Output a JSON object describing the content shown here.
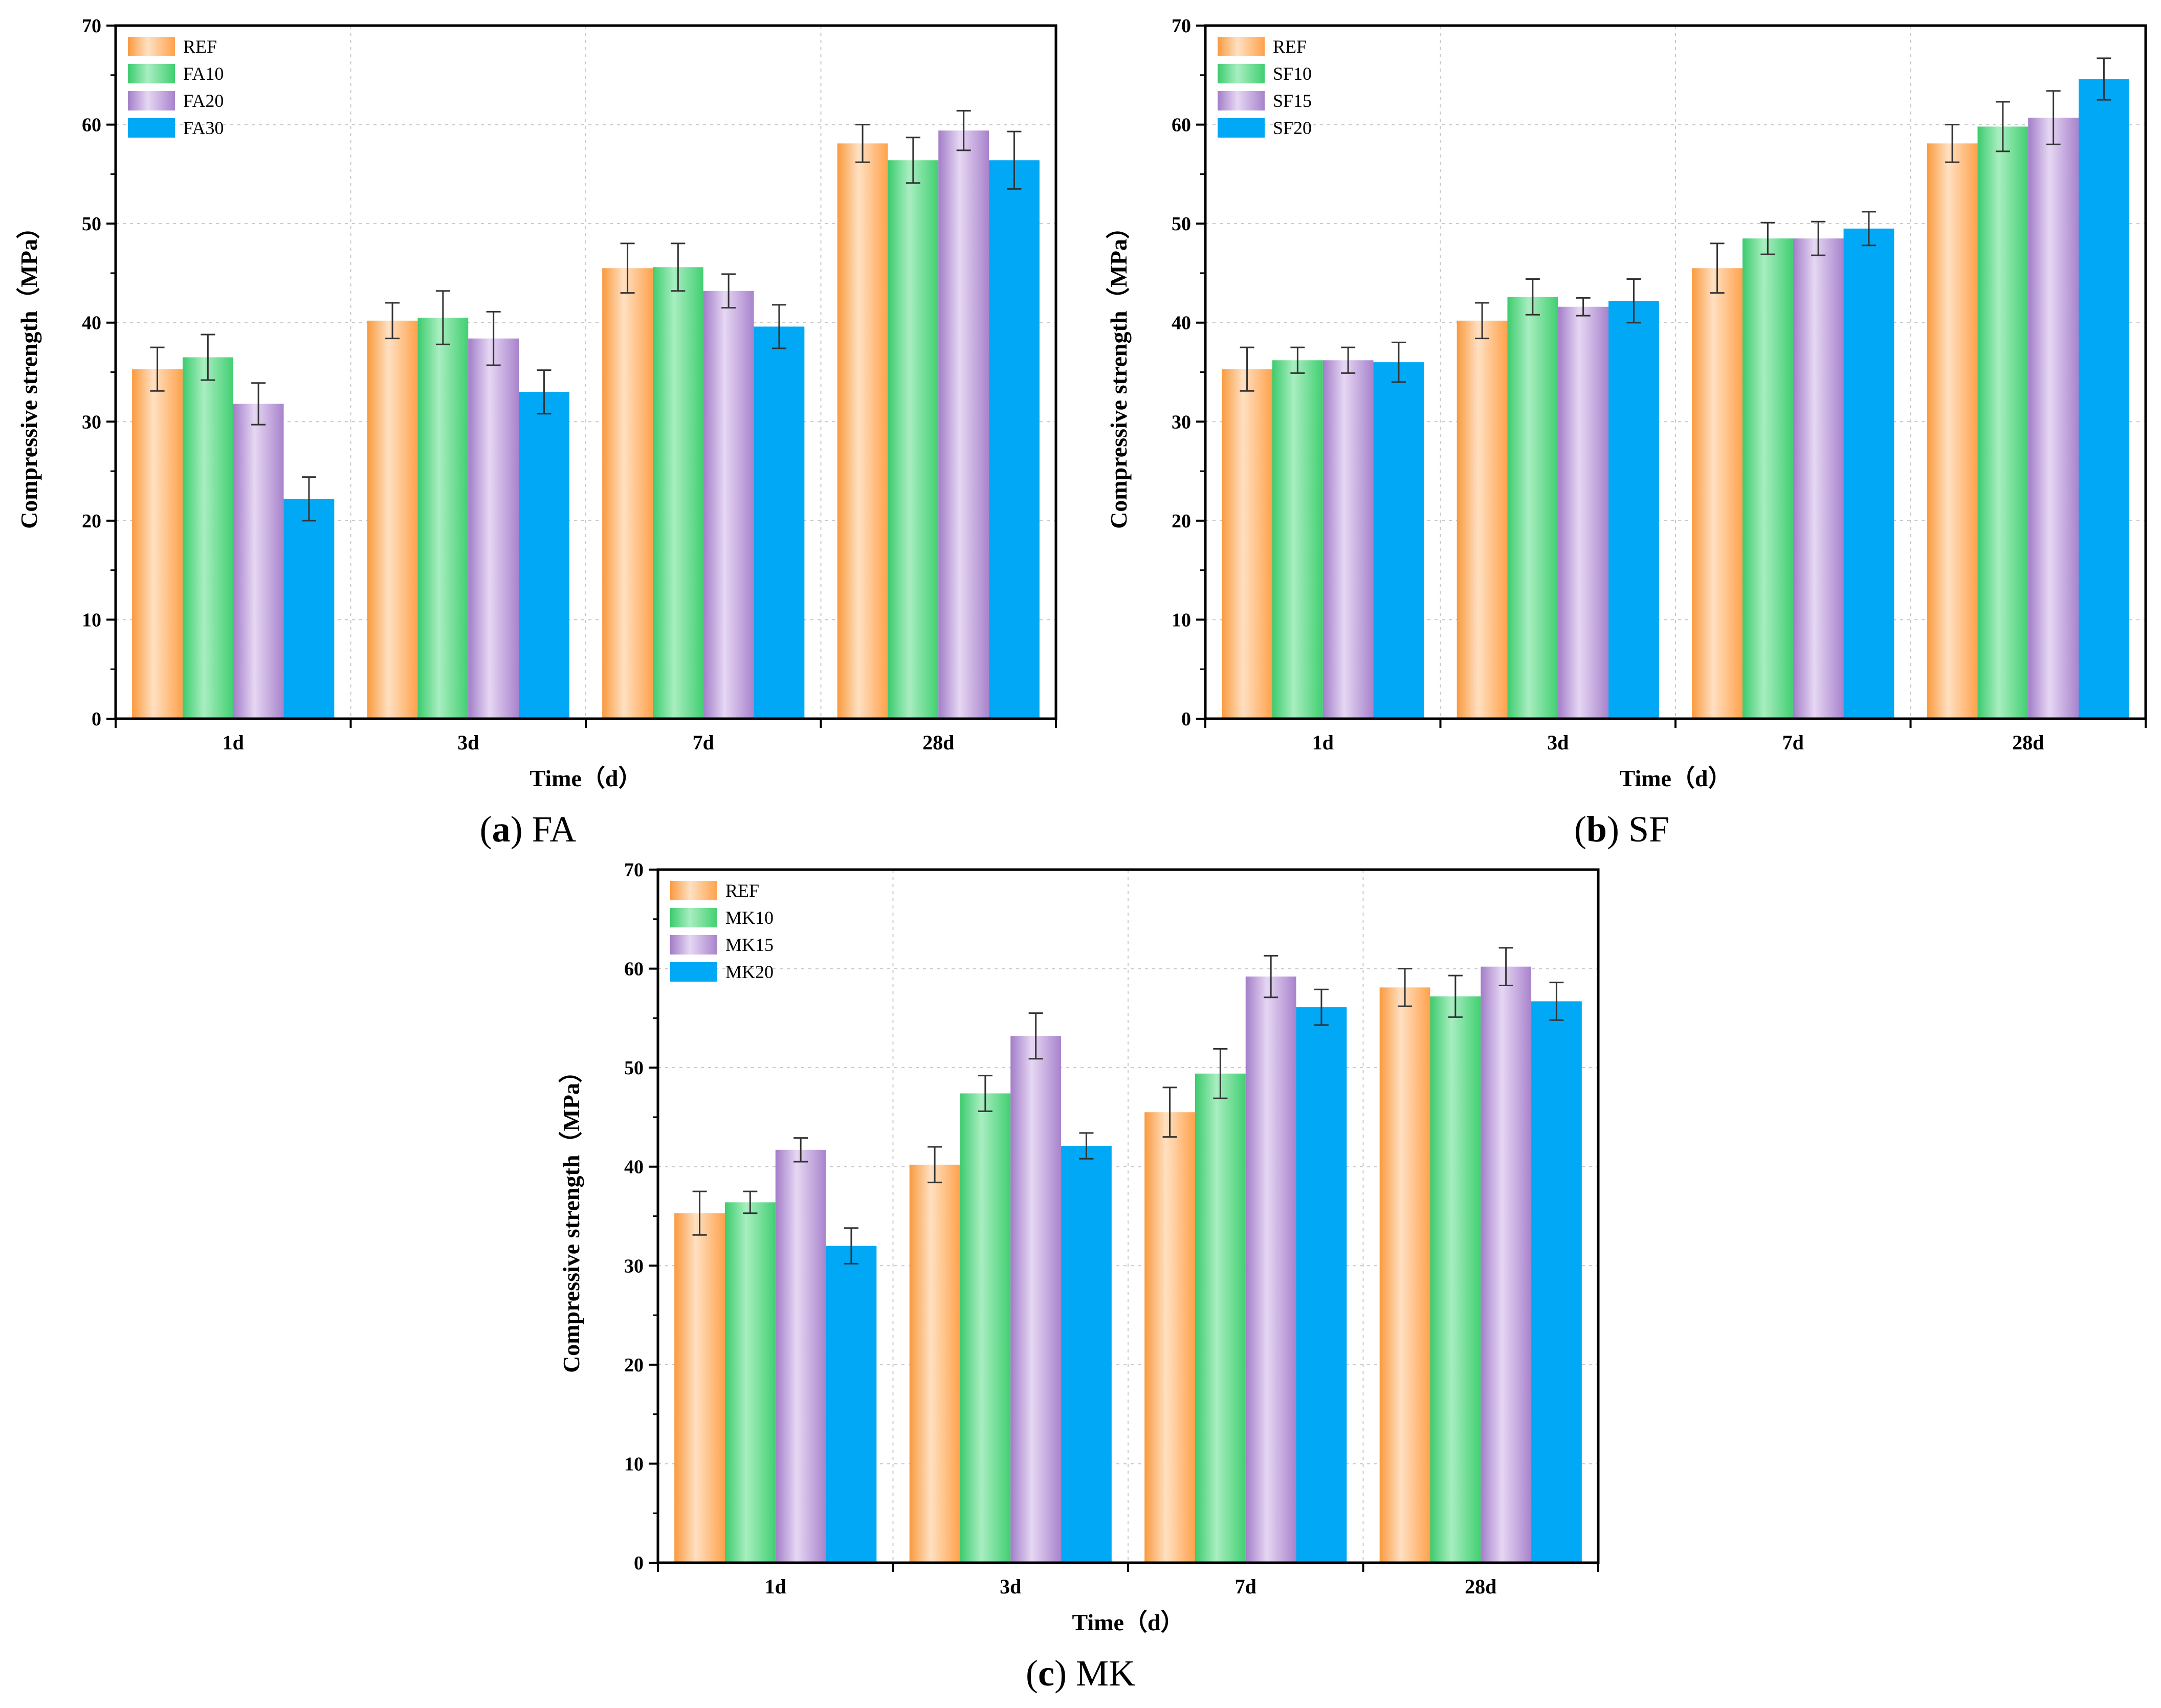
{
  "figure": {
    "captions": [
      {
        "letter": "a",
        "text": "FA"
      },
      {
        "letter": "b",
        "text": "SF"
      },
      {
        "letter": "c",
        "text": "MK"
      }
    ]
  },
  "colors": {
    "REF": "#FFB56B",
    "G1": "#5FD88A",
    "G2": "#C5A6E0",
    "G3": "#00A8F5",
    "errorbar": "#333333",
    "grid": "#C8C8C8"
  },
  "chart_data": [
    {
      "type": "bar",
      "panel": "a",
      "xlabel": "Time（d）",
      "ylabel": "Compressive strength（MPa）",
      "ylim": [
        0,
        70
      ],
      "yticks": [
        0,
        10,
        20,
        30,
        40,
        50,
        60,
        70
      ],
      "grid": true,
      "legend_position": "top-left",
      "categories": [
        "1d",
        "3d",
        "7d",
        "28d"
      ],
      "series": [
        {
          "name": "REF",
          "values": [
            35.3,
            40.2,
            45.5,
            58.1
          ],
          "errors": [
            2.2,
            1.8,
            2.5,
            1.9
          ]
        },
        {
          "name": "FA10",
          "values": [
            36.5,
            40.5,
            45.6,
            56.4
          ],
          "errors": [
            2.3,
            2.7,
            2.4,
            2.3
          ]
        },
        {
          "name": "FA20",
          "values": [
            31.8,
            38.4,
            43.2,
            59.4
          ],
          "errors": [
            2.1,
            2.7,
            1.7,
            2.0
          ]
        },
        {
          "name": "FA30",
          "values": [
            22.2,
            33.0,
            39.6,
            56.4
          ],
          "errors": [
            2.2,
            2.2,
            2.2,
            2.9
          ]
        }
      ]
    },
    {
      "type": "bar",
      "panel": "b",
      "xlabel": "Time（d）",
      "ylabel": "Compressive strength（MPa）",
      "ylim": [
        0,
        70
      ],
      "yticks": [
        0,
        10,
        20,
        30,
        40,
        50,
        60,
        70
      ],
      "grid": true,
      "legend_position": "top-left",
      "categories": [
        "1d",
        "3d",
        "7d",
        "28d"
      ],
      "series": [
        {
          "name": "REF",
          "values": [
            35.3,
            40.2,
            45.5,
            58.1
          ],
          "errors": [
            2.2,
            1.8,
            2.5,
            1.9
          ]
        },
        {
          "name": "SF10",
          "values": [
            36.2,
            42.6,
            48.5,
            59.8
          ],
          "errors": [
            1.3,
            1.8,
            1.6,
            2.5
          ]
        },
        {
          "name": "SF15",
          "values": [
            36.2,
            41.6,
            48.5,
            60.7
          ],
          "errors": [
            1.3,
            0.9,
            1.7,
            2.7
          ]
        },
        {
          "name": "SF20",
          "values": [
            36.0,
            42.2,
            49.5,
            64.6
          ],
          "errors": [
            2.0,
            2.2,
            1.7,
            2.1
          ]
        }
      ]
    },
    {
      "type": "bar",
      "panel": "c",
      "xlabel": "Time（d）",
      "ylabel": "Compressive strength（MPa）",
      "ylim": [
        0,
        70
      ],
      "yticks": [
        0,
        10,
        20,
        30,
        40,
        50,
        60,
        70
      ],
      "grid": true,
      "legend_position": "top-left",
      "categories": [
        "1d",
        "3d",
        "7d",
        "28d"
      ],
      "series": [
        {
          "name": "REF",
          "values": [
            35.3,
            40.2,
            45.5,
            58.1
          ],
          "errors": [
            2.2,
            1.8,
            2.5,
            1.9
          ]
        },
        {
          "name": "MK10",
          "values": [
            36.4,
            47.4,
            49.4,
            57.2
          ],
          "errors": [
            1.1,
            1.8,
            2.5,
            2.1
          ]
        },
        {
          "name": "MK15",
          "values": [
            41.7,
            53.2,
            59.2,
            60.2
          ],
          "errors": [
            1.2,
            2.3,
            2.1,
            1.9
          ]
        },
        {
          "name": "MK20",
          "values": [
            32.0,
            42.1,
            56.1,
            56.7
          ],
          "errors": [
            1.8,
            1.3,
            1.8,
            1.9
          ]
        }
      ]
    }
  ]
}
